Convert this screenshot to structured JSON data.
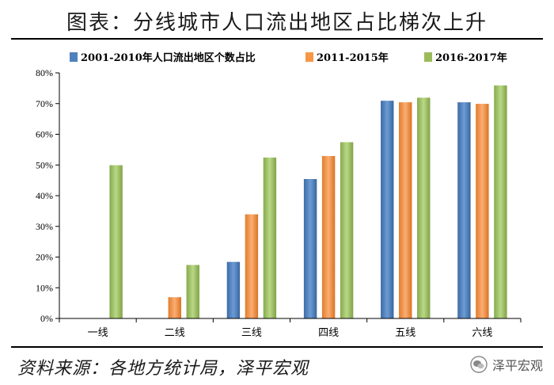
{
  "figure_title": "图表：分线城市人口流出地区占比梯次上升",
  "source": "资料来源：各地方统计局，泽平宏观",
  "watermark": "泽平宏观",
  "chart_data": {
    "type": "bar",
    "categories": [
      "一线",
      "二线",
      "三线",
      "四线",
      "五线",
      "六线"
    ],
    "series": [
      {
        "name": "2001-2010年人口流出地区个数占比",
        "color": "#4f81bd",
        "values": [
          0,
          0,
          18.5,
          45.5,
          71,
          70.5
        ]
      },
      {
        "name": "2011-2015年",
        "color": "#f79646",
        "values": [
          0,
          7,
          34,
          53,
          70.5,
          70
        ]
      },
      {
        "name": "2016-2017年",
        "color": "#9bbb59",
        "values": [
          50,
          17.5,
          52.5,
          57.5,
          72,
          76
        ]
      }
    ],
    "yticks": [
      "0%",
      "10%",
      "20%",
      "30%",
      "40%",
      "50%",
      "60%",
      "70%",
      "80%"
    ],
    "ylim": [
      0,
      80
    ],
    "legend_position": "top"
  }
}
